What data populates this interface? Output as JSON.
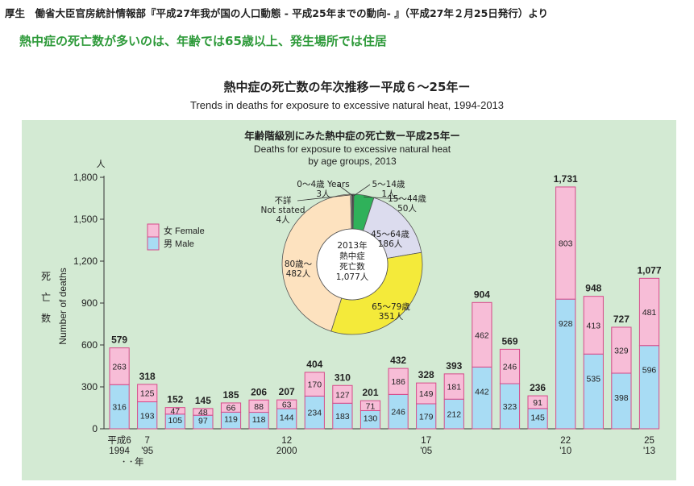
{
  "header": {
    "source_line": "厚生　働省大臣官房統計情報部『平成27年我が国の人口動態 - 平成25年までの動向- 』（平成27年２月25日発行）より",
    "headline": "熱中症の死亡数が多いのは、年齢では65歳以上、発生場所では住居"
  },
  "chart_data": [
    {
      "type": "bar",
      "title": "熱中症の死亡数の年次推移ー平成６～25年ー",
      "subtitle": "Trends in deaths for exposure to excessive natural heat, 1994-2013",
      "y_unit": "人",
      "ylabel_ja": "死亡数",
      "ylabel_en": "Number of deaths",
      "ylim": [
        0,
        1800
      ],
      "yticks": [
        "0",
        "300",
        "600",
        "900",
        "1,200",
        "1,500",
        "1,800"
      ],
      "stacked": true,
      "categories": [
        "1994",
        "1995",
        "1996",
        "1997",
        "1998",
        "1999",
        "2000",
        "2001",
        "2002",
        "2003",
        "2004",
        "2005",
        "2006",
        "2007",
        "2008",
        "2009",
        "2010",
        "2011",
        "2012",
        "2013"
      ],
      "series": [
        {
          "name": "男 Male",
          "color": "#a8dcf4",
          "values": [
            316,
            193,
            105,
            97,
            119,
            118,
            144,
            234,
            183,
            130,
            246,
            179,
            212,
            442,
            323,
            145,
            928,
            535,
            398,
            596
          ]
        },
        {
          "name": "女 Female",
          "color": "#f7bdd7",
          "values": [
            263,
            125,
            47,
            48,
            66,
            88,
            63,
            170,
            127,
            71,
            186,
            149,
            181,
            462,
            246,
            91,
            803,
            413,
            329,
            481
          ]
        }
      ],
      "totals": [
        "579",
        "318",
        "152",
        "145",
        "185",
        "206",
        "207",
        "404",
        "310",
        "201",
        "432",
        "328",
        "393",
        "904",
        "569",
        "236",
        "1,731",
        "948",
        "727",
        "1,077"
      ],
      "x_labels": [
        {
          "index": 0,
          "lines": [
            "平成6",
            "1994"
          ]
        },
        {
          "index": 1,
          "lines": [
            "7",
            "'95"
          ]
        },
        {
          "index": 6,
          "lines": [
            "12",
            "2000"
          ]
        },
        {
          "index": 11,
          "lines": [
            "17",
            "'05"
          ]
        },
        {
          "index": 16,
          "lines": [
            "22",
            "'10"
          ]
        },
        {
          "index": 19,
          "lines": [
            "25",
            "'13"
          ]
        }
      ],
      "x_suffix": "年",
      "x_suffix_dots": "・・",
      "legend": {
        "placement": "top-left",
        "female": "女 Female",
        "male": "男 Male"
      },
      "background": "#d3ead3",
      "grid": false
    },
    {
      "type": "pie",
      "title_ja": "年齢階級別にみた熱中症の死亡数ー平成25年ー",
      "title_en_1": "Deaths for exposure to excessive natural heat",
      "title_en_2": "by age groups, 2013",
      "center_lines": [
        "2013年",
        "熱中症",
        "死亡数",
        "1,077人"
      ],
      "slices": [
        {
          "label": "0～4歳 Years",
          "value": 3,
          "value_label": "3人",
          "color": "#333333"
        },
        {
          "label": "5～14歳",
          "value": 1,
          "value_label": "1人",
          "color": "#333333"
        },
        {
          "label": "15～44歳",
          "value": 50,
          "value_label": "50人",
          "color": "#2fb15a"
        },
        {
          "label": "45～64歳",
          "value": 186,
          "value_label": "186人",
          "color": "#dcdcee"
        },
        {
          "label": "65～79歳",
          "value": 351,
          "value_label": "351人",
          "color": "#f4ea3a"
        },
        {
          "label": "80歳～",
          "value": 482,
          "value_label": "482人",
          "color": "#fde2bf"
        },
        {
          "label": "不詳",
          "label_2": "Not stated",
          "value": 4,
          "value_label": "4人",
          "color": "#888888"
        }
      ]
    }
  ]
}
